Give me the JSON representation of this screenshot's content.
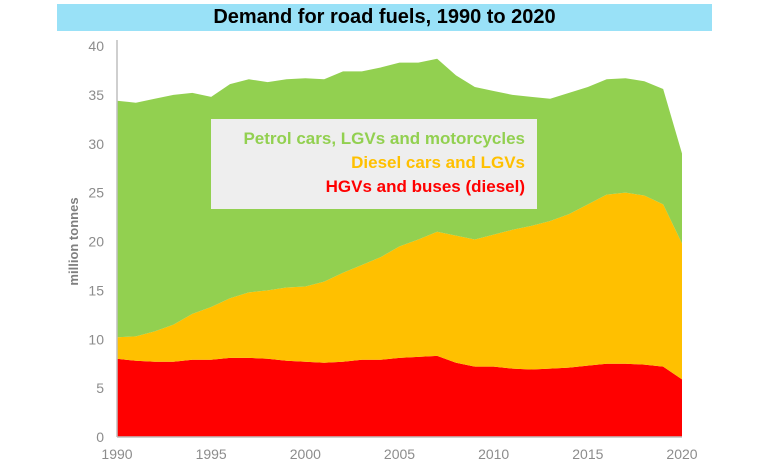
{
  "chart_data": {
    "type": "area",
    "stacked": true,
    "title": "Demand for road fuels, 1990 to 2020",
    "xlabel": "",
    "ylabel": "million tonnes",
    "xlim": [
      1990,
      2020
    ],
    "ylim": [
      0,
      40
    ],
    "xticks": [
      1990,
      1995,
      2000,
      2005,
      2010,
      2015,
      2020
    ],
    "yticks": [
      0,
      5,
      10,
      15,
      20,
      25,
      30,
      35,
      40
    ],
    "grid": false,
    "legend_placement": "center-top",
    "x": [
      1990,
      1991,
      1992,
      1993,
      1994,
      1995,
      1996,
      1997,
      1998,
      1999,
      2000,
      2001,
      2002,
      2003,
      2004,
      2005,
      2006,
      2007,
      2008,
      2009,
      2010,
      2011,
      2012,
      2013,
      2014,
      2015,
      2016,
      2017,
      2018,
      2019,
      2020
    ],
    "series": [
      {
        "name": "HGVs and buses (diesel)",
        "color": "#ff0000",
        "values": [
          8.0,
          7.8,
          7.7,
          7.7,
          7.9,
          7.9,
          8.1,
          8.1,
          8.0,
          7.8,
          7.7,
          7.6,
          7.7,
          7.9,
          7.9,
          8.1,
          8.2,
          8.3,
          7.6,
          7.2,
          7.2,
          7.0,
          6.9,
          7.0,
          7.1,
          7.3,
          7.5,
          7.5,
          7.4,
          7.2,
          5.9
        ]
      },
      {
        "name": "Diesel cars and LGVs",
        "color": "#ffc000",
        "values": [
          2.2,
          2.5,
          3.1,
          3.8,
          4.7,
          5.4,
          6.1,
          6.7,
          7.0,
          7.5,
          7.7,
          8.3,
          9.1,
          9.7,
          10.5,
          11.4,
          12.0,
          12.7,
          13.0,
          13.0,
          13.5,
          14.2,
          14.7,
          15.1,
          15.7,
          16.5,
          17.3,
          17.5,
          17.3,
          16.6,
          13.9
        ]
      },
      {
        "name": "Petrol cars, LGVs and motorcycles",
        "color": "#92d050",
        "values": [
          24.2,
          23.9,
          23.8,
          23.5,
          22.6,
          21.5,
          21.9,
          21.8,
          21.3,
          21.3,
          21.3,
          20.7,
          20.6,
          19.8,
          19.4,
          18.8,
          18.1,
          17.7,
          16.4,
          15.6,
          14.7,
          13.8,
          13.2,
          12.5,
          12.4,
          12.0,
          11.8,
          11.7,
          11.7,
          11.8,
          9.2
        ]
      }
    ]
  }
}
